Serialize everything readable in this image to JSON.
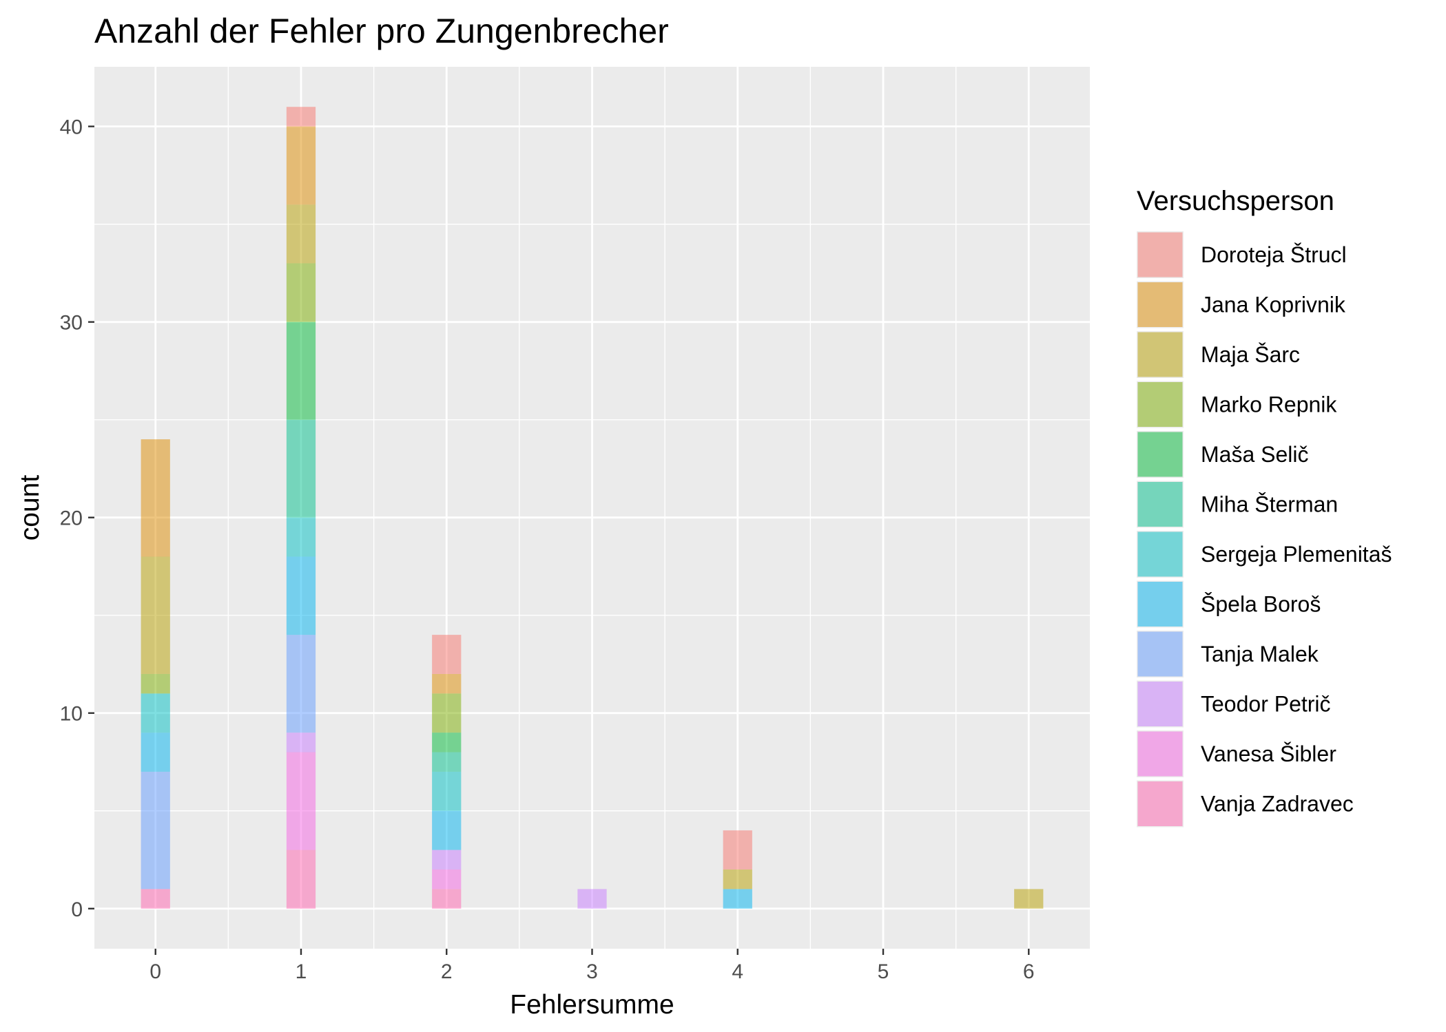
{
  "chart_data": {
    "type": "bar",
    "stacked": true,
    "title": "Anzahl der Fehler pro Zungenbrecher",
    "xlabel": "Fehlersumme",
    "ylabel": "count",
    "x_ticks": [
      "0",
      "1",
      "2",
      "3",
      "4",
      "5",
      "6"
    ],
    "y_ticks": [
      "0",
      "10",
      "20",
      "30",
      "40"
    ],
    "xlim": [
      -0.42,
      6.42
    ],
    "ylim": [
      -2.05,
      43.05
    ],
    "grid": true,
    "legend": {
      "title": "Versuchsperson",
      "position": "right"
    },
    "x": [
      0,
      1,
      2,
      3,
      4,
      6
    ],
    "series": [
      {
        "name": "Doroteja Štrucl",
        "color": "#F8766D",
        "values": [
          0,
          1,
          2,
          0,
          2,
          0
        ]
      },
      {
        "name": "Jana Koprivnik",
        "color": "#DE8C00",
        "values": [
          6,
          4,
          1,
          0,
          0,
          0
        ]
      },
      {
        "name": "Maja Šarc",
        "color": "#B79F00",
        "values": [
          6,
          3,
          0,
          0,
          1,
          1
        ]
      },
      {
        "name": "Marko Repnik",
        "color": "#7CAE00",
        "values": [
          1,
          3,
          2,
          0,
          0,
          0
        ]
      },
      {
        "name": "Maša Selič",
        "color": "#00BA38",
        "values": [
          0,
          5,
          1,
          0,
          0,
          0
        ]
      },
      {
        "name": "Miha Šterman",
        "color": "#00C08B",
        "values": [
          0,
          5,
          1,
          0,
          0,
          0
        ]
      },
      {
        "name": "Sergeja Plemenitaš",
        "color": "#00BFC4",
        "values": [
          2,
          2,
          2,
          0,
          0,
          0
        ]
      },
      {
        "name": "Špela Boroš",
        "color": "#00B4F0",
        "values": [
          2,
          4,
          2,
          0,
          1,
          0
        ]
      },
      {
        "name": "Tanja Malek",
        "color": "#619CFF",
        "values": [
          6,
          5,
          0,
          0,
          0,
          0
        ]
      },
      {
        "name": "Teodor Petrič",
        "color": "#C77CFF",
        "values": [
          0,
          1,
          1,
          1,
          0,
          0
        ]
      },
      {
        "name": "Vanesa Šibler",
        "color": "#F564E3",
        "values": [
          0,
          5,
          1,
          0,
          0,
          0
        ]
      },
      {
        "name": "Vanja Zadravec",
        "color": "#FF64B0",
        "values": [
          1,
          3,
          1,
          0,
          0,
          0
        ]
      }
    ],
    "colors": {
      "panel": "#EBEBEB",
      "grid": "#FFFFFF"
    }
  }
}
